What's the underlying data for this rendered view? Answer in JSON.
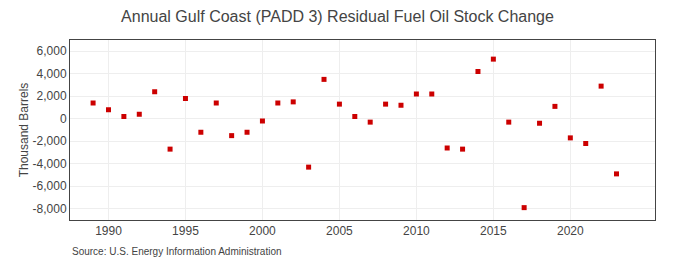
{
  "chart_data": {
    "type": "scatter",
    "title": "Annual Gulf Coast (PADD 3) Residual Fuel Oil Stock Change",
    "ylabel": "Thousand Barrels",
    "annotations": [
      "Source: U.S. Energy Information Administration"
    ],
    "x": [
      1989,
      1990,
      1991,
      1992,
      1993,
      1994,
      1995,
      1996,
      1997,
      1998,
      1999,
      2000,
      2001,
      2002,
      2003,
      2004,
      2005,
      2006,
      2007,
      2008,
      2009,
      2010,
      2011,
      2012,
      2013,
      2014,
      2015,
      2016,
      2017,
      2018,
      2019,
      2020,
      2021,
      2022,
      2023
    ],
    "values": [
      1400,
      800,
      200,
      400,
      2400,
      -2700,
      1800,
      -1200,
      1400,
      -1500,
      -1200,
      -200,
      1400,
      1500,
      -4300,
      3500,
      1300,
      200,
      -300,
      1300,
      1200,
      2200,
      2200,
      -2600,
      -2700,
      4200,
      5300,
      -300,
      -7900,
      -400,
      1100,
      -1700,
      -2200,
      2900,
      -4900
    ],
    "color": "#cc0000",
    "marker": "square",
    "xlim": [
      1987.5,
      2025.5
    ],
    "xticks": [
      1990,
      1995,
      2000,
      2005,
      2010,
      2015,
      2020
    ],
    "ylim": [
      -9000,
      7000
    ],
    "yticks": [
      {
        "value": -8000,
        "label": "-8,000"
      },
      {
        "value": -6000,
        "label": "-6,000"
      },
      {
        "value": -4000,
        "label": "-4,000"
      },
      {
        "value": -2000,
        "label": "-2,000"
      },
      0,
      {
        "value": 2000,
        "label": "2,000"
      },
      {
        "value": 4000,
        "label": "4,000"
      },
      {
        "value": 6000,
        "label": "6,000"
      }
    ],
    "grid": true
  }
}
